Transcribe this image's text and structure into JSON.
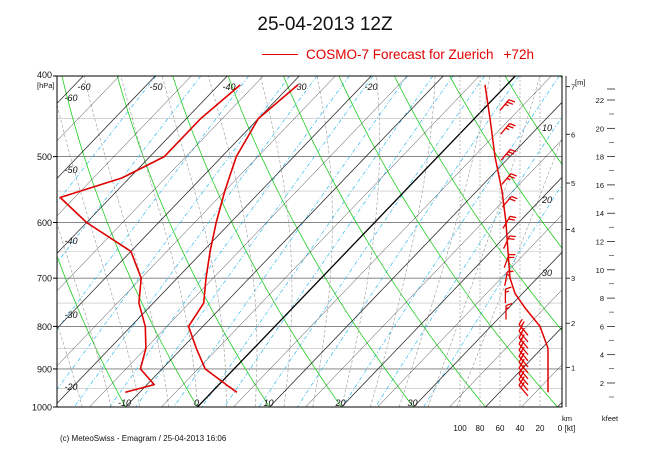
{
  "chart_data": {
    "type": "line",
    "title": "25-04-2013  12Z",
    "legend": {
      "series_label": "COSMO-7 Forecast for Zuerich",
      "lead_time": "+72h",
      "color": "#e00000"
    },
    "footer": "(c) MeteoSwiss - Emagram  /  25-04-2013  16:06",
    "y_axis": {
      "unit_label": "[hPa]",
      "scale": "log",
      "range": [
        400,
        1000
      ],
      "ticks": [
        "400",
        "500",
        "600",
        "700",
        "800",
        "900",
        "1000"
      ]
    },
    "x_axis": {
      "range": [
        -60,
        40
      ],
      "ticks": [
        "-10",
        "0",
        "10",
        "20",
        "30"
      ]
    },
    "isotherm_labels": [
      "-60",
      "-50",
      "-40",
      "-30",
      "-20",
      "-60",
      "-50",
      "-40",
      "-30",
      "-20"
    ],
    "mixing_ratio_labels": [
      "10",
      "20",
      "30"
    ],
    "height_axis": {
      "unit_label": "[m]",
      "ticks": [
        "7",
        "6",
        "5",
        "4",
        "3",
        "2",
        "1"
      ],
      "bottom_label": "km"
    },
    "kfeet_axis": {
      "ticks": [
        "22",
        "20",
        "18",
        "16",
        "14",
        "12",
        "10",
        "8",
        "6",
        "4",
        "2"
      ],
      "bottom_label": "kfeet"
    },
    "wind_axis": {
      "ticks": [
        "100",
        "80",
        "60",
        "40",
        "20",
        "0"
      ],
      "unit_label": "[kt]"
    },
    "series": [
      {
        "name": "temperature",
        "points": [
          [
            410,
            -29
          ],
          [
            450,
            -30
          ],
          [
            500,
            -28
          ],
          [
            550,
            -25
          ],
          [
            600,
            -22
          ],
          [
            650,
            -19
          ],
          [
            700,
            -16
          ],
          [
            750,
            -13
          ],
          [
            800,
            -12
          ],
          [
            850,
            -8
          ],
          [
            900,
            -4
          ],
          [
            940,
            1
          ],
          [
            960,
            3.5
          ]
        ]
      },
      {
        "name": "dewpoint",
        "points": [
          [
            410,
            -37
          ],
          [
            450,
            -38
          ],
          [
            500,
            -38
          ],
          [
            530,
            -41
          ],
          [
            560,
            -47
          ],
          [
            600,
            -40
          ],
          [
            650,
            -30
          ],
          [
            700,
            -25
          ],
          [
            750,
            -22
          ],
          [
            800,
            -18
          ],
          [
            850,
            -15
          ],
          [
            900,
            -13
          ],
          [
            940,
            -9
          ],
          [
            960,
            -12
          ]
        ]
      }
    ],
    "wind_profile": {
      "name": "wind speed",
      "points": [
        [
          410,
          75
        ],
        [
          450,
          70
        ],
        [
          500,
          65
        ],
        [
          550,
          58
        ],
        [
          600,
          54
        ],
        [
          650,
          52
        ],
        [
          700,
          50
        ],
        [
          730,
          45
        ],
        [
          760,
          35
        ],
        [
          800,
          20
        ],
        [
          850,
          12
        ],
        [
          900,
          12
        ],
        [
          960,
          12
        ]
      ]
    },
    "wind_barbs": [
      {
        "p": 440,
        "dir": 220,
        "kt": 25
      },
      {
        "p": 470,
        "dir": 220,
        "kt": 25
      },
      {
        "p": 505,
        "dir": 220,
        "kt": 25
      },
      {
        "p": 540,
        "dir": 220,
        "kt": 25
      },
      {
        "p": 575,
        "dir": 220,
        "kt": 20
      },
      {
        "p": 610,
        "dir": 210,
        "kt": 20
      },
      {
        "p": 645,
        "dir": 205,
        "kt": 20
      },
      {
        "p": 680,
        "dir": 200,
        "kt": 20
      },
      {
        "p": 715,
        "dir": 190,
        "kt": 15
      },
      {
        "p": 750,
        "dir": 180,
        "kt": 15
      },
      {
        "p": 785,
        "dir": 180,
        "kt": 15
      },
      {
        "p": 820,
        "dir": 140,
        "kt": 20
      },
      {
        "p": 835,
        "dir": 140,
        "kt": 20
      },
      {
        "p": 850,
        "dir": 140,
        "kt": 20
      },
      {
        "p": 865,
        "dir": 140,
        "kt": 20
      },
      {
        "p": 880,
        "dir": 140,
        "kt": 20
      },
      {
        "p": 895,
        "dir": 140,
        "kt": 20
      },
      {
        "p": 910,
        "dir": 140,
        "kt": 20
      },
      {
        "p": 925,
        "dir": 140,
        "kt": 20
      },
      {
        "p": 940,
        "dir": 140,
        "kt": 20
      },
      {
        "p": 955,
        "dir": 140,
        "kt": 20
      },
      {
        "p": 970,
        "dir": 140,
        "kt": 20
      }
    ],
    "colors": {
      "profile": "#e00000",
      "isotherm": "#222222",
      "dry_adiabat": "#22cc22",
      "moist_adiabat": "#999999",
      "mixing_ratio": "#33bbee",
      "grid": "#aaaaaa"
    }
  }
}
